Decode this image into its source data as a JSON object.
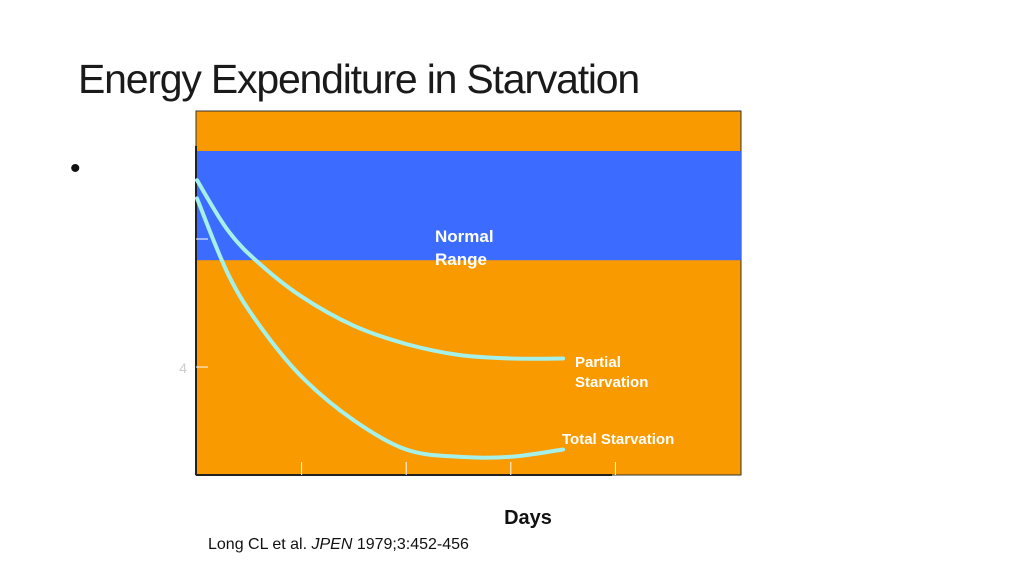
{
  "slide": {
    "title": "Energy Expenditure in Starvation",
    "bullet": "•"
  },
  "citation": {
    "authors": "Long CL et al. ",
    "journal": "JPEN",
    "ref": " 1979;3:452-456"
  },
  "colors": {
    "plot_background": "#f89a00",
    "normal_band": "#3b6cff",
    "curves": "#a6f0ea",
    "band_label": "#ffffff",
    "series_label": "#ffffff"
  },
  "chart_data": {
    "type": "line",
    "xlabel": "Days",
    "ylabel": "",
    "y_tick_label": "4",
    "band": {
      "label_line1": "Normal",
      "label_line2": "Range"
    },
    "x_domain": [
      0,
      5
    ],
    "y_domain": [
      0,
      100
    ],
    "band_range": [
      59,
      89
    ],
    "x_ticks": [
      1,
      2,
      3,
      4
    ],
    "series": [
      {
        "name_line1": "Partial",
        "name_line2": "Starvation",
        "x": [
          0,
          0.3,
          0.6,
          1.0,
          1.5,
          2.0,
          2.5,
          3.0,
          3.5
        ],
        "y": [
          81,
          67,
          58,
          49,
          41,
          36,
          33,
          32,
          32
        ]
      },
      {
        "name_line1": "Total Starvation",
        "name_line2": "",
        "x": [
          0,
          0.3,
          0.6,
          1.0,
          1.5,
          2.0,
          2.5,
          3.0,
          3.5
        ],
        "y": [
          76,
          55,
          41,
          27,
          15,
          7,
          5,
          5,
          7
        ]
      }
    ]
  }
}
